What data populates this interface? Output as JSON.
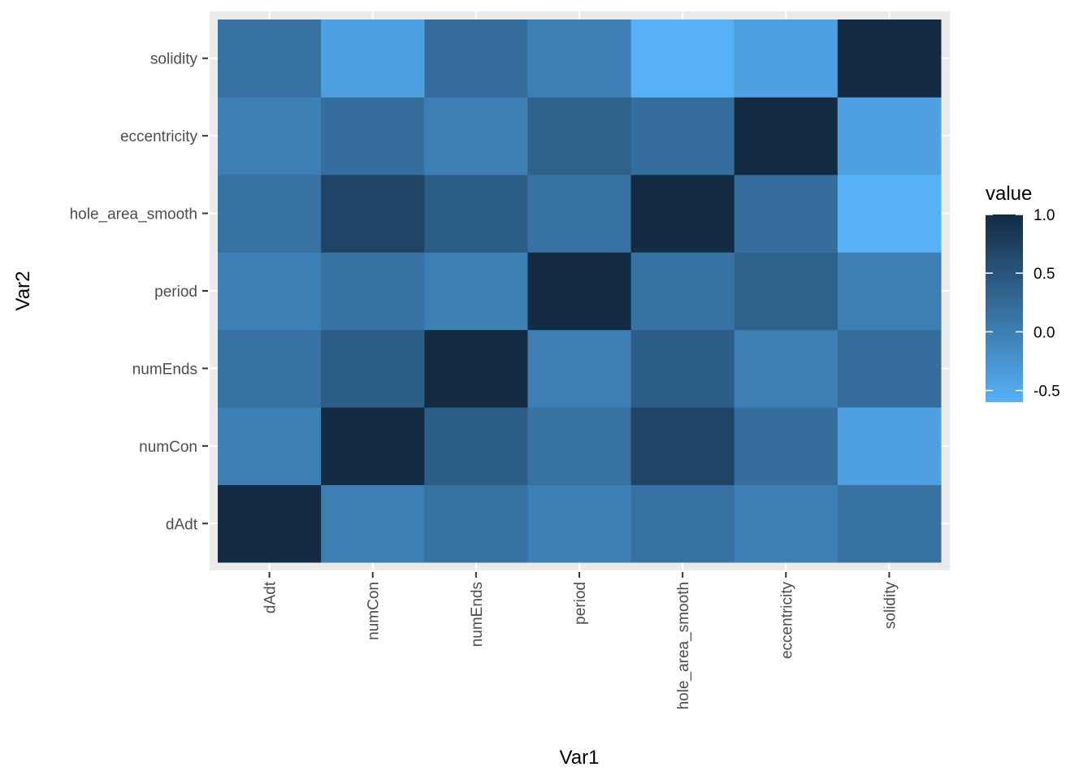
{
  "chart_data": {
    "type": "heatmap",
    "xlabel": "Var1",
    "ylabel": "Var2",
    "x_categories": [
      "dAdt",
      "numCon",
      "numEnds",
      "period",
      "hole_area_smooth",
      "eccentricity",
      "solidity"
    ],
    "y_categories": [
      "dAdt",
      "numCon",
      "numEnds",
      "period",
      "hole_area_smooth",
      "eccentricity",
      "solidity"
    ],
    "values": [
      [
        1.0,
        0.0,
        0.15,
        0.0,
        0.15,
        0.0,
        0.15
      ],
      [
        0.0,
        1.0,
        0.4,
        0.15,
        0.7,
        0.2,
        -0.4
      ],
      [
        0.15,
        0.4,
        1.0,
        0.0,
        0.4,
        0.0,
        0.2
      ],
      [
        0.0,
        0.15,
        0.0,
        1.0,
        0.15,
        0.35,
        0.0
      ],
      [
        0.15,
        0.7,
        0.4,
        0.15,
        1.0,
        0.2,
        -0.6
      ],
      [
        0.0,
        0.2,
        0.0,
        0.35,
        0.2,
        1.0,
        -0.4
      ],
      [
        0.15,
        -0.4,
        0.2,
        0.0,
        -0.6,
        -0.4,
        1.0
      ]
    ],
    "legend": {
      "title": "value",
      "ticks": [
        1.0,
        0.5,
        0.0,
        -0.5
      ],
      "tick_labels": [
        "1.0",
        "0.5",
        "0.0",
        "-0.5"
      ],
      "range": [
        -0.6,
        1.0
      ],
      "color_low": "#56B1F7",
      "color_high": "#132B43",
      "position": "right"
    },
    "panel_background": "#EBEBEB",
    "grid": true
  }
}
